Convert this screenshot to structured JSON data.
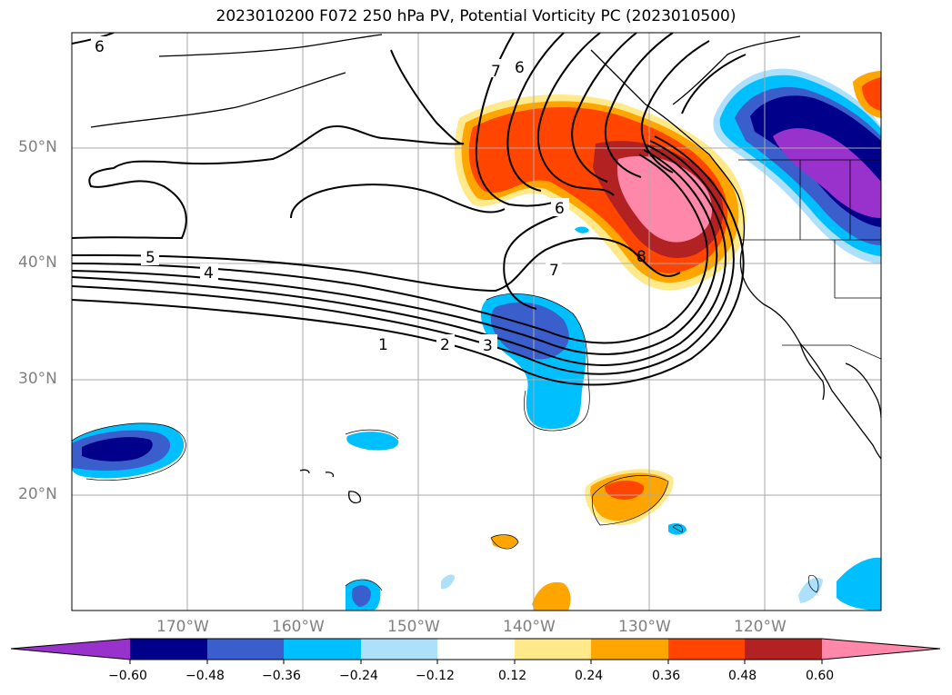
{
  "title": "2023010200 F072 250 hPa PV, Potential Vorticity PC (2023010500)",
  "lat_labels": [
    "50°N",
    "40°N",
    "30°N",
    "20°N"
  ],
  "lon_labels": [
    "170°W",
    "160°W",
    "150°W",
    "140°W",
    "130°W",
    "120°W"
  ],
  "contour_labels": [
    "6",
    "6",
    "7",
    "6",
    "7",
    "8",
    "5",
    "4",
    "1",
    "2",
    "3"
  ],
  "colorbar": {
    "tick_labels": [
      "−0.60",
      "−0.48",
      "−0.36",
      "−0.24",
      "−0.12",
      "0.12",
      "0.24",
      "0.36",
      "0.48",
      "0.60"
    ],
    "colors": [
      "#9932CC",
      "#00008B",
      "#3A5FCD",
      "#00BFFF",
      "#ADE0FA",
      "#FFFFFF",
      "#FFE98A",
      "#FFA500",
      "#FF4500",
      "#B22222",
      "#FF88AA"
    ]
  }
}
